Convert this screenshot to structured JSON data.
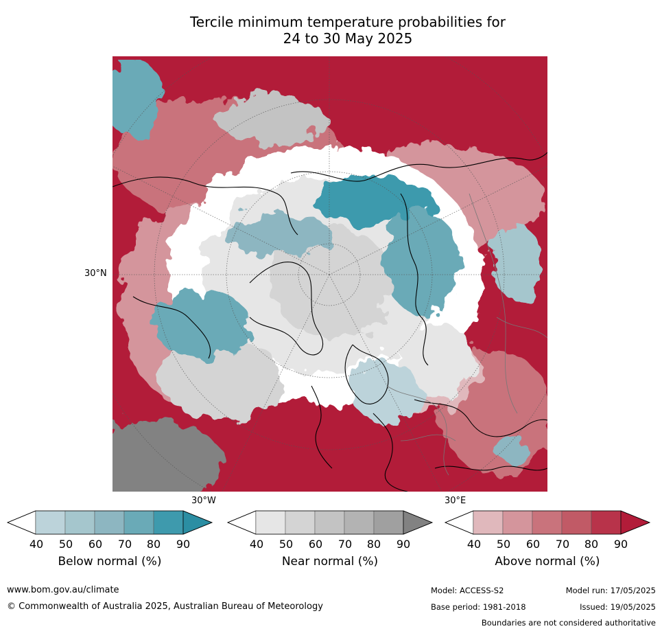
{
  "title_line1": "Tercile minimum temperature probabilities for",
  "title_line2": "24 to 30 May 2025",
  "axis_labels": {
    "lat_30n": "30°N",
    "lon_30w": "30°W",
    "lon_30e": "30°E"
  },
  "colorbars": [
    {
      "label": "Below normal (%)",
      "ticks": [
        "40",
        "50",
        "60",
        "70",
        "80",
        "90"
      ],
      "colors": [
        "#bcd3da",
        "#a5c6cd",
        "#8db6c1",
        "#6aaab7",
        "#3e9aad",
        "#2b8ea3"
      ]
    },
    {
      "label": "Near normal (%)",
      "ticks": [
        "40",
        "50",
        "60",
        "70",
        "80",
        "90"
      ],
      "colors": [
        "#e6e6e6",
        "#d4d4d4",
        "#c3c3c3",
        "#b3b3b3",
        "#a0a0a0",
        "#828282"
      ]
    },
    {
      "label": "Above normal (%)",
      "ticks": [
        "40",
        "50",
        "60",
        "70",
        "80",
        "90"
      ],
      "colors": [
        "#e0b8bc",
        "#d4959c",
        "#c9737c",
        "#c15a66",
        "#b8334a",
        "#b21c39"
      ]
    }
  ],
  "footer": {
    "website": "www.bom.gov.au/climate",
    "copyright": "© Commonwealth of Australia 2025, Australian Bureau of Meteorology",
    "model": "Model: ACCESS-S2",
    "base_period": "Base period: 1981-2018",
    "model_run": "Model run: 17/05/2025",
    "issued": "Issued: 19/05/2025",
    "disclaimer": "Boundaries are not considered authoritative"
  }
}
